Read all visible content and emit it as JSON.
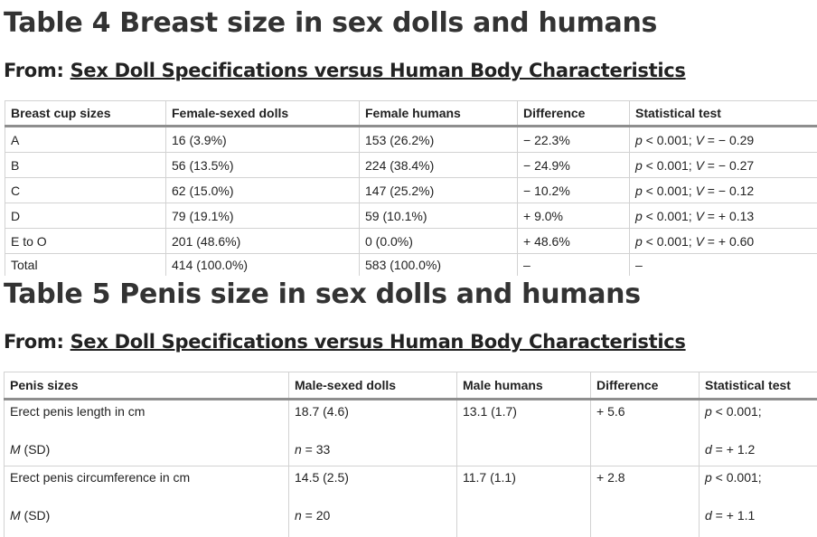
{
  "table4": {
    "title": "Table 4 Breast size in sex dolls and humans",
    "from_label": "From:",
    "from_link": "Sex Doll Specifications versus Human Body Characteristics",
    "headers": [
      "Breast cup sizes",
      "Female-sexed dolls",
      "Female humans",
      "Difference",
      "Statistical test"
    ],
    "rows": [
      {
        "cup": "A",
        "dolls": "16 (3.9%)",
        "humans": "153 (26.2%)",
        "diff": "− 22.3%",
        "test_p": "p",
        "test_rest": " < 0.001; ",
        "test_v": "V",
        "test_val": " = − 0.29"
      },
      {
        "cup": "B",
        "dolls": "56 (13.5%)",
        "humans": "224 (38.4%)",
        "diff": "− 24.9%",
        "test_p": "p",
        "test_rest": " < 0.001; ",
        "test_v": "V",
        "test_val": " = − 0.27"
      },
      {
        "cup": "C",
        "dolls": "62 (15.0%)",
        "humans": "147 (25.2%)",
        "diff": "− 10.2%",
        "test_p": "p",
        "test_rest": " < 0.001; ",
        "test_v": "V",
        "test_val": " = − 0.12"
      },
      {
        "cup": "D",
        "dolls": "79 (19.1%)",
        "humans": "59 (10.1%)",
        "diff": "+ 9.0%",
        "test_p": "p",
        "test_rest": " < 0.001; ",
        "test_v": "V",
        "test_val": " = + 0.13"
      },
      {
        "cup": "E to O",
        "dolls": "201 (48.6%)",
        "humans": "0 (0.0%)",
        "diff": "+ 48.6%",
        "test_p": "p",
        "test_rest": " < 0.001; ",
        "test_v": "V",
        "test_val": " = + 0.60"
      }
    ],
    "total": {
      "label": "Total",
      "dolls": "414 (100.0%)",
      "humans": "583 (100.0%)",
      "diff": "–",
      "test": "–"
    }
  },
  "table5": {
    "title": "Table 5 Penis size in sex dolls and humans",
    "from_label": "From:",
    "from_link": "Sex Doll Specifications versus Human Body Characteristics",
    "headers": [
      "Penis sizes",
      "Male-sexed dolls",
      "Male humans",
      "Difference",
      "Statistical test"
    ],
    "rows": [
      {
        "label": "Erect penis length in cm",
        "sub_m": "M",
        "sub_sd": " (SD)",
        "dolls": "18.7 (4.6)",
        "n_label": "n",
        "n_val": " = 33",
        "humans": "13.1 (1.7)",
        "diff": "+ 5.6",
        "p_label": "p",
        "p_val": " < 0.001;",
        "d_label": "d",
        "d_val": " = + 1.2"
      },
      {
        "label": "Erect penis circumference in cm",
        "sub_m": "M",
        "sub_sd": " (SD)",
        "dolls": "14.5 (2.5)",
        "n_label": "n",
        "n_val": " = 20",
        "humans": "11.7 (1.1)",
        "diff": "+ 2.8",
        "p_label": "p",
        "p_val": " < 0.001;",
        "d_label": "d",
        "d_val": " = + 1.1"
      }
    ]
  }
}
